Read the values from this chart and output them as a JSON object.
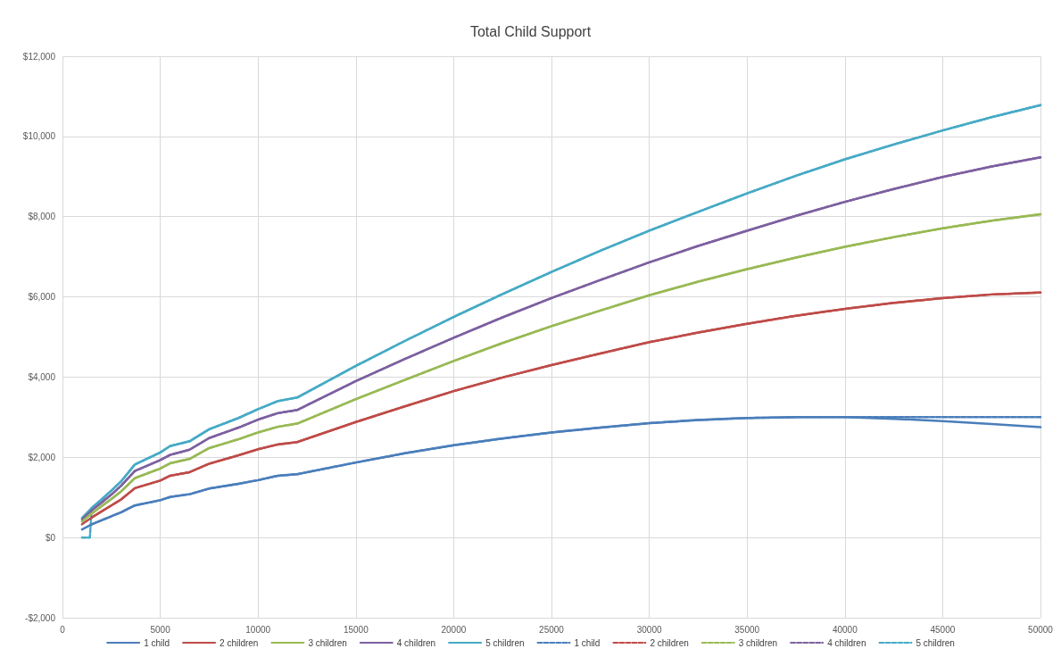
{
  "chart_data": {
    "type": "line",
    "title": "Total Child Support",
    "x": [
      1000,
      1500,
      2000,
      2500,
      3000,
      3700,
      5000,
      5500,
      6500,
      7500,
      9000,
      10000,
      11000,
      12000,
      15000,
      17500,
      20000,
      22500,
      25000,
      27500,
      30000,
      32500,
      35000,
      37500,
      40000,
      42500,
      45000,
      47500,
      50000
    ],
    "series": [
      {
        "name": "1 child",
        "color": "#4a7ebb",
        "line_style": "solid",
        "values": [
          200,
          330,
          430,
          530,
          630,
          800,
          930,
          1010,
          1080,
          1220,
          1340,
          1430,
          1540,
          1580,
          1870,
          2100,
          2300,
          2470,
          2620,
          2740,
          2850,
          2930,
          2980,
          3000,
          3000,
          2960,
          2900,
          2830,
          2750
        ]
      },
      {
        "name": "2 children",
        "color": "#be4b48",
        "line_style": "solid",
        "values": [
          330,
          500,
          650,
          800,
          950,
          1230,
          1420,
          1540,
          1630,
          1840,
          2050,
          2200,
          2320,
          2380,
          2880,
          3270,
          3650,
          3990,
          4300,
          4590,
          4870,
          5110,
          5330,
          5530,
          5700,
          5850,
          5970,
          6060,
          6110
        ]
      },
      {
        "name": "3 children",
        "color": "#98b954",
        "line_style": "solid",
        "values": [
          400,
          600,
          780,
          960,
          1150,
          1480,
          1720,
          1850,
          1960,
          2230,
          2450,
          2620,
          2760,
          2840,
          3450,
          3930,
          4400,
          4850,
          5270,
          5660,
          6040,
          6380,
          6690,
          6980,
          7250,
          7490,
          7710,
          7900,
          8060
        ]
      },
      {
        "name": "4 children",
        "color": "#7d60a0",
        "line_style": "solid",
        "values": [
          450,
          680,
          870,
          1070,
          1290,
          1660,
          1930,
          2060,
          2190,
          2480,
          2740,
          2940,
          3100,
          3180,
          3900,
          4450,
          4980,
          5490,
          5970,
          6420,
          6860,
          7270,
          7650,
          8020,
          8370,
          8690,
          8990,
          9250,
          9480
        ]
      },
      {
        "name": "5 children",
        "color": "#46aac5",
        "line_style": "solid",
        "values": [
          490,
          740,
          950,
          1170,
          1400,
          1820,
          2120,
          2280,
          2400,
          2700,
          2980,
          3200,
          3400,
          3490,
          4280,
          4900,
          5500,
          6070,
          6620,
          7150,
          7650,
          8120,
          8580,
          9020,
          9430,
          9800,
          10150,
          10480,
          10780
        ]
      },
      {
        "name": "1 child",
        "color": "#4a7ebb",
        "line_style": "dashed",
        "x": [
          1500,
          2000,
          2500,
          3000,
          3700,
          5000,
          5500,
          6500,
          7500,
          9000,
          10000,
          11000,
          12000,
          15000,
          17500,
          20000,
          22500,
          25000,
          27500,
          30000,
          32500,
          35000,
          37500,
          40000,
          42500,
          45000,
          47500,
          50000
        ],
        "values": [
          330,
          430,
          530,
          630,
          800,
          930,
          1010,
          1080,
          1220,
          1340,
          1430,
          1540,
          1580,
          1870,
          2100,
          2300,
          2470,
          2620,
          2740,
          2850,
          2930,
          2980,
          3000,
          3000,
          3000,
          3000,
          3000,
          3000
        ]
      },
      {
        "name": "2 children",
        "color": "#be4b48",
        "line_style": "dashed",
        "x": [
          1500,
          2000,
          2500,
          3000,
          3700,
          5000,
          5500,
          6500,
          7500,
          9000,
          10000,
          11000,
          12000,
          15000,
          17500,
          20000,
          22500,
          25000,
          27500,
          30000,
          32500,
          35000,
          37500,
          40000,
          42500,
          45000,
          47500,
          50000
        ],
        "values": [
          500,
          650,
          800,
          950,
          1230,
          1420,
          1540,
          1630,
          1840,
          2050,
          2200,
          2320,
          2380,
          2880,
          3270,
          3650,
          3990,
          4300,
          4590,
          4870,
          5110,
          5330,
          5530,
          5700,
          5850,
          5970,
          6060,
          6110
        ]
      },
      {
        "name": "3 children",
        "color": "#98b954",
        "line_style": "dashed",
        "x": [
          1500,
          2000,
          2500,
          3000,
          3700,
          5000,
          5500,
          6500,
          7500,
          9000,
          10000,
          11000,
          12000,
          15000,
          17500,
          20000,
          22500,
          25000,
          27500,
          30000,
          32500,
          35000,
          37500,
          40000,
          42500,
          45000,
          47500,
          50000
        ],
        "values": [
          600,
          780,
          960,
          1150,
          1480,
          1720,
          1850,
          1960,
          2230,
          2450,
          2620,
          2760,
          2840,
          3450,
          3930,
          4400,
          4850,
          5270,
          5660,
          6040,
          6380,
          6690,
          6980,
          7250,
          7490,
          7710,
          7900,
          8060
        ]
      },
      {
        "name": "4 children",
        "color": "#7d60a0",
        "line_style": "dashed",
        "x": [
          1500,
          2000,
          2500,
          3000,
          3700,
          5000,
          5500,
          6500,
          7500,
          9000,
          10000,
          11000,
          12000,
          15000,
          17500,
          20000,
          22500,
          25000,
          27500,
          30000,
          32500,
          35000,
          37500,
          40000,
          42500,
          45000,
          47500,
          50000
        ],
        "values": [
          680,
          870,
          1070,
          1290,
          1660,
          1930,
          2060,
          2190,
          2480,
          2740,
          2940,
          3100,
          3180,
          3900,
          4450,
          4980,
          5490,
          5970,
          6420,
          6860,
          7270,
          7650,
          8020,
          8370,
          8690,
          8990,
          9250,
          9480
        ]
      },
      {
        "name": "5 children",
        "color": "#46aac5",
        "line_style": "dashed",
        "x": [
          1000,
          1400,
          1500,
          2000,
          2500,
          3000,
          3700,
          5000,
          5500,
          6500,
          7500,
          9000,
          10000,
          11000,
          12000,
          15000,
          17500,
          20000,
          22500,
          25000,
          27500,
          30000,
          32500,
          35000,
          37500,
          40000,
          42500,
          45000,
          47500,
          50000
        ],
        "values": [
          0,
          0,
          740,
          950,
          1170,
          1400,
          1820,
          2120,
          2280,
          2400,
          2700,
          2980,
          3200,
          3400,
          3490,
          4280,
          4900,
          5500,
          6070,
          6620,
          7150,
          7650,
          8120,
          8580,
          9020,
          9430,
          9800,
          10150,
          10480,
          10780
        ]
      }
    ],
    "xlim": [
      0,
      50000
    ],
    "xticks": [
      0,
      5000,
      10000,
      15000,
      20000,
      25000,
      30000,
      35000,
      40000,
      45000,
      50000
    ],
    "ylim": [
      -2000,
      12000
    ],
    "yticks": [
      {
        "value": -2000,
        "label": "-$2,000"
      },
      {
        "value": 0,
        "label": "$0"
      },
      {
        "value": 2000,
        "label": "$2,000"
      },
      {
        "value": 4000,
        "label": "$4,000"
      },
      {
        "value": 6000,
        "label": "$6,000"
      },
      {
        "value": 8000,
        "label": "$8,000"
      },
      {
        "value": 10000,
        "label": "$10,000"
      },
      {
        "value": 12000,
        "label": "$12,000"
      }
    ],
    "grid": true,
    "legend": "bottom",
    "marker": "none"
  }
}
